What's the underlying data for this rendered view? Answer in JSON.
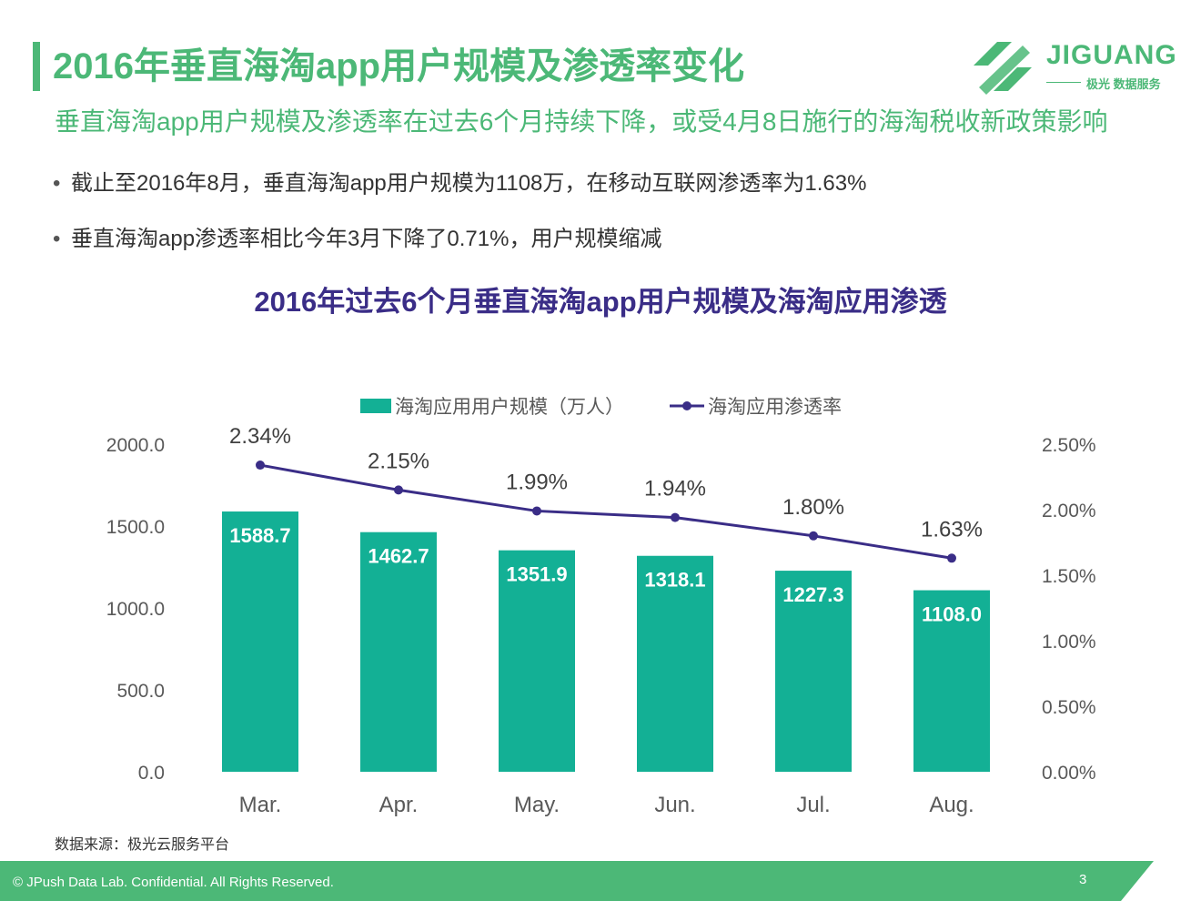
{
  "page": {
    "title": "2016年垂直海淘app用户规模及渗透率变化",
    "subtitle": "垂直海淘app用户规模及渗透率在过去6个月持续下降，或受4月8日施行的海淘税收新政策影响",
    "bullets": [
      "截止至2016年8月，垂直海淘app用户规模为1108万，在移动互联网渗透率为1.63%",
      "垂直海淘app渗透率相比今年3月下降了0.71%，用户规模缩减"
    ],
    "bullet_symbol": "•",
    "logo": {
      "brand": "JIGUANG",
      "tagline": "极光 数据服务"
    },
    "source": "数据来源：极光云服务平台",
    "footer": "© JPush Data Lab. Confidential. All Rights Reserved.",
    "page_number": "3",
    "colors": {
      "brand_green": "#4cb877",
      "bar": "#13b095",
      "line": "#3a2d87"
    }
  },
  "chart_data": {
    "type": "bar",
    "title": "2016年过去6个月垂直海淘app用户规模及海淘应用渗透",
    "categories": [
      "Mar.",
      "Apr.",
      "May.",
      "Jun.",
      "Jul.",
      "Aug."
    ],
    "series": [
      {
        "name": "海淘应用用户规模（万人）",
        "type": "bar",
        "axis": "left",
        "values": [
          1588.7,
          1462.7,
          1351.9,
          1318.1,
          1227.3,
          1108.0
        ],
        "labels": [
          "1588.7",
          "1462.7",
          "1351.9",
          "1318.1",
          "1227.3",
          "1108.0"
        ]
      },
      {
        "name": "海淘应用渗透率",
        "type": "line",
        "axis": "right",
        "values": [
          2.34,
          2.15,
          1.99,
          1.94,
          1.8,
          1.63
        ],
        "labels": [
          "2.34%",
          "2.15%",
          "1.99%",
          "1.94%",
          "1.80%",
          "1.63%"
        ]
      }
    ],
    "y_left": {
      "min": 0,
      "max": 2000,
      "ticks": [
        "0.0",
        "500.0",
        "1000.0",
        "1500.0",
        "2000.0"
      ]
    },
    "y_right": {
      "min": 0,
      "max": 2.5,
      "ticks": [
        "0.00%",
        "0.50%",
        "1.00%",
        "1.50%",
        "2.00%",
        "2.50%"
      ]
    },
    "legend_position": "top-center",
    "grid": false
  }
}
